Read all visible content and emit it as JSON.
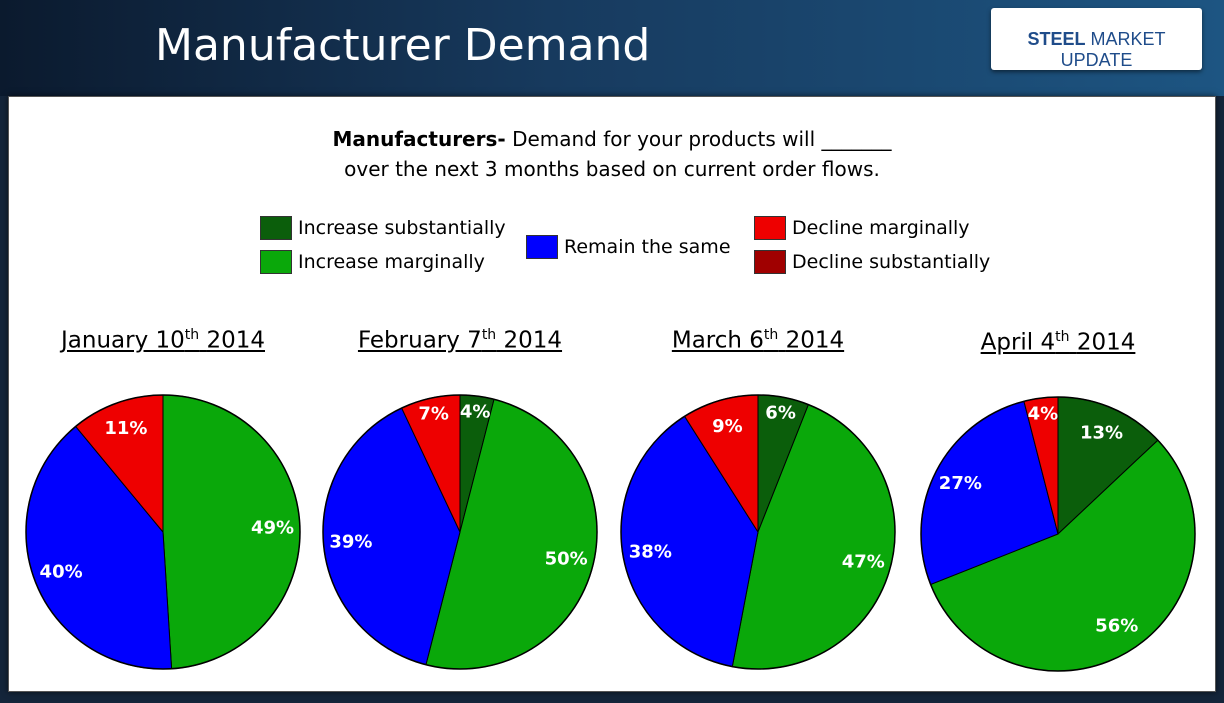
{
  "header": {
    "title": "Manufacturer Demand",
    "logo_bold": "STEEL",
    "logo_rest": "MARKET UPDATE"
  },
  "question": {
    "lead": "Manufacturers-",
    "line1": "Demand for your products will _______",
    "line2": "over the next 3 months based on current order flows."
  },
  "chart_data": [
    {
      "type": "pie",
      "title": {
        "date": "January 10",
        "suffix": "th",
        "year": "2014"
      },
      "categories": [
        "Increase substantially",
        "Increase marginally",
        "Remain the same",
        "Decline marginally",
        "Decline substantially"
      ],
      "colors": [
        "#0b5e0b",
        "#0aa80a",
        "#0000ff",
        "#ee0000",
        "#a00000"
      ],
      "values": [
        0,
        49,
        40,
        11,
        0
      ],
      "value_labels": [
        null,
        "49%",
        "40%",
        "11%",
        null
      ]
    },
    {
      "type": "pie",
      "title": {
        "date": "February 7",
        "suffix": "th",
        "year": "2014"
      },
      "categories": [
        "Increase substantially",
        "Increase marginally",
        "Remain the same",
        "Decline marginally",
        "Decline substantially"
      ],
      "colors": [
        "#0b5e0b",
        "#0aa80a",
        "#0000ff",
        "#ee0000",
        "#a00000"
      ],
      "values": [
        4,
        50,
        39,
        7,
        0
      ],
      "value_labels": [
        "4%",
        "50%",
        "39%",
        "7%",
        null
      ]
    },
    {
      "type": "pie",
      "title": {
        "date": "March 6",
        "suffix": "th",
        "year": "2014"
      },
      "categories": [
        "Increase substantially",
        "Increase marginally",
        "Remain the same",
        "Decline marginally",
        "Decline substantially"
      ],
      "colors": [
        "#0b5e0b",
        "#0aa80a",
        "#0000ff",
        "#ee0000",
        "#a00000"
      ],
      "values": [
        6,
        47,
        38,
        9,
        0
      ],
      "value_labels": [
        "6%",
        "47%",
        "38%",
        "9%",
        null
      ]
    },
    {
      "type": "pie",
      "title": {
        "date": "April 4",
        "suffix": "th",
        "year": "2014"
      },
      "categories": [
        "Increase substantially",
        "Increase marginally",
        "Remain the same",
        "Decline marginally",
        "Decline substantially"
      ],
      "colors": [
        "#0b5e0b",
        "#0aa80a",
        "#0000ff",
        "#ee0000",
        "#a00000"
      ],
      "values": [
        13,
        56,
        27,
        4,
        0
      ],
      "value_labels": [
        "13%",
        "56%",
        "27%",
        "4%",
        null
      ]
    }
  ]
}
